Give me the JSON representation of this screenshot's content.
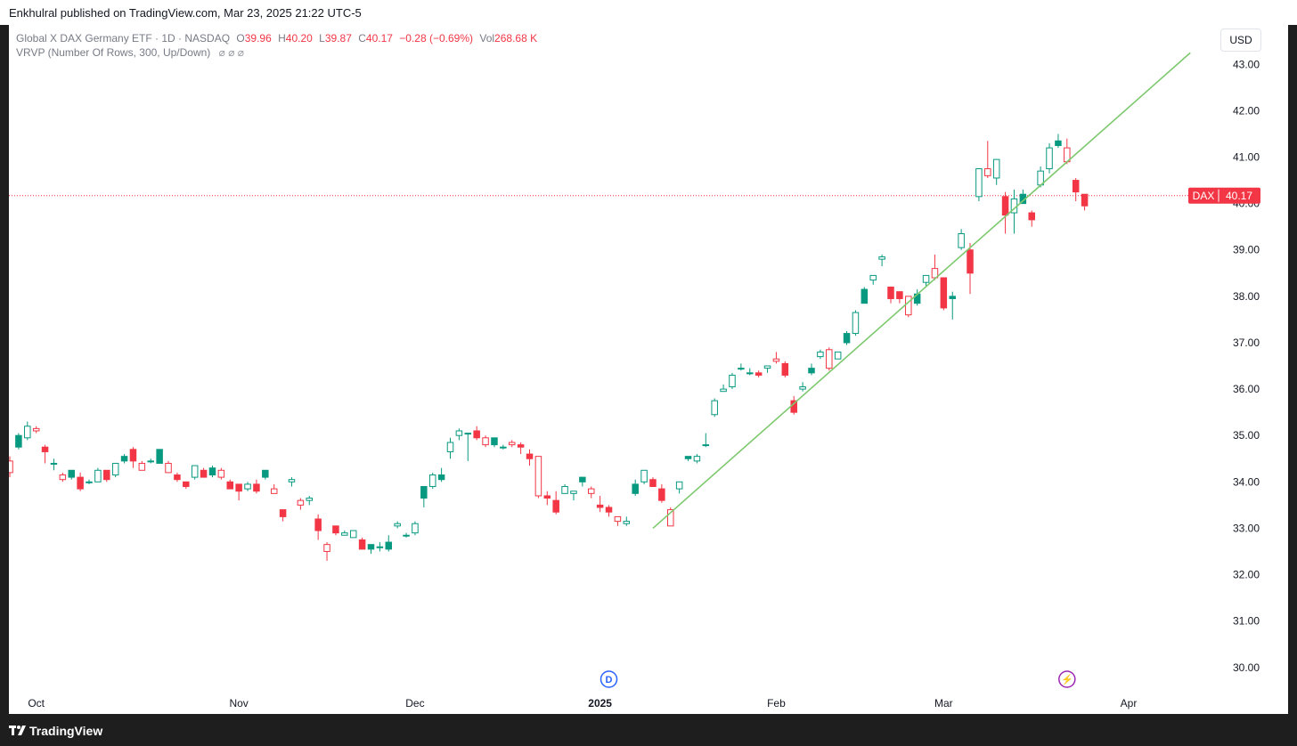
{
  "header": {
    "published": "Enkhulral published on TradingView.com, Mar 23, 2025 21:22 UTC-5"
  },
  "legend": {
    "title": "Global X DAX Germany ETF · 1D · NASDAQ",
    "o_key": "O",
    "o": "39.96",
    "h_key": "H",
    "h": "40.20",
    "l_key": "L",
    "l": "39.87",
    "c_key": "C",
    "c": "40.17",
    "change": "−0.28 (−0.69%)",
    "vol_key": "Vol",
    "vol": "268.68 K",
    "indicator": "VRVP (Number Of Rows, 300, Up/Down)",
    "indicator_icons": "⌀ ⌀ ⌀"
  },
  "currency_button": "USD",
  "footer": {
    "brand": "TradingView"
  },
  "colors": {
    "up": "#089981",
    "down": "#f23645",
    "trendline": "#7ec96f",
    "price_line": "#f23645"
  },
  "events": [
    {
      "label": "D",
      "date_index": 68,
      "color": "#2962ff"
    },
    {
      "label": "⚡",
      "date_index": 120,
      "color": "#9c27b0"
    }
  ],
  "chart_data": {
    "type": "candlestick",
    "symbol": "DAX",
    "last_price": "40.17",
    "last_label": "DAX",
    "ylim": [
      29.65,
      43.85
    ],
    "y_ticks": [
      "30.00",
      "31.00",
      "32.00",
      "33.00",
      "34.00",
      "35.00",
      "36.00",
      "37.00",
      "38.00",
      "39.00",
      "40.00",
      "41.00",
      "42.00",
      "43.00"
    ],
    "x_ticks": [
      {
        "label": "Oct",
        "index": 3
      },
      {
        "label": "Nov",
        "index": 26
      },
      {
        "label": "Dec",
        "index": 46
      },
      {
        "label": "2025",
        "index": 67
      },
      {
        "label": "Feb",
        "index": 87
      },
      {
        "label": "Mar",
        "index": 106
      },
      {
        "label": "Apr",
        "index": 127
      }
    ],
    "trendline": [
      {
        "index": 73,
        "price": 33.0
      },
      {
        "index": 134,
        "price": 43.25
      }
    ],
    "candles": [
      [
        34.45,
        34.2,
        34.55,
        34.1
      ],
      [
        34.75,
        35.0,
        35.05,
        34.7
      ],
      [
        34.95,
        35.2,
        35.3,
        34.9
      ],
      [
        35.15,
        35.1,
        35.2,
        35.05
      ],
      [
        34.75,
        34.65,
        34.8,
        34.4
      ],
      [
        34.4,
        34.4,
        34.5,
        34.25
      ],
      [
        34.15,
        34.05,
        34.2,
        34.0
      ],
      [
        34.1,
        34.25,
        34.25,
        34.05
      ],
      [
        34.1,
        33.85,
        34.2,
        33.8
      ],
      [
        34.0,
        34.0,
        34.05,
        33.95
      ],
      [
        34.0,
        34.25,
        34.3,
        34.0
      ],
      [
        34.25,
        34.05,
        34.25,
        34.0
      ],
      [
        34.15,
        34.4,
        34.4,
        34.1
      ],
      [
        34.45,
        34.55,
        34.6,
        34.4
      ],
      [
        34.7,
        34.45,
        34.75,
        34.3
      ],
      [
        34.4,
        34.25,
        34.45,
        34.25
      ],
      [
        34.45,
        34.45,
        34.5,
        34.4
      ],
      [
        34.4,
        34.7,
        34.7,
        34.4
      ],
      [
        34.4,
        34.2,
        34.45,
        34.2
      ],
      [
        34.15,
        34.05,
        34.2,
        34.0
      ],
      [
        34.0,
        33.9,
        34.0,
        33.85
      ],
      [
        34.1,
        34.35,
        34.35,
        34.05
      ],
      [
        34.25,
        34.1,
        34.3,
        34.1
      ],
      [
        34.15,
        34.3,
        34.35,
        34.1
      ],
      [
        34.25,
        34.1,
        34.3,
        34.05
      ],
      [
        34.0,
        33.85,
        34.05,
        33.85
      ],
      [
        33.95,
        33.8,
        33.95,
        33.6
      ],
      [
        33.85,
        33.95,
        34.0,
        33.8
      ],
      [
        33.95,
        33.8,
        34.05,
        33.75
      ],
      [
        34.1,
        34.25,
        34.25,
        34.05
      ],
      [
        33.85,
        33.75,
        33.95,
        33.75
      ],
      [
        33.4,
        33.25,
        33.4,
        33.15
      ],
      [
        34.0,
        34.05,
        34.1,
        33.9
      ],
      [
        33.6,
        33.5,
        33.65,
        33.4
      ],
      [
        33.6,
        33.65,
        33.7,
        33.5
      ],
      [
        33.2,
        32.95,
        33.3,
        32.75
      ],
      [
        32.65,
        32.5,
        32.7,
        32.3
      ],
      [
        33.05,
        32.9,
        33.05,
        32.85
      ],
      [
        32.85,
        32.9,
        32.95,
        32.85
      ],
      [
        32.8,
        32.95,
        32.95,
        32.85
      ],
      [
        32.75,
        32.55,
        32.8,
        32.55
      ],
      [
        32.55,
        32.65,
        32.65,
        32.45
      ],
      [
        32.6,
        32.6,
        32.7,
        32.5
      ],
      [
        32.55,
        32.7,
        32.85,
        32.5
      ],
      [
        33.05,
        33.1,
        33.15,
        33.0
      ],
      [
        32.85,
        32.85,
        32.9,
        32.8
      ],
      [
        32.9,
        33.1,
        33.15,
        32.85
      ],
      [
        33.65,
        33.9,
        33.9,
        33.45
      ],
      [
        33.9,
        34.15,
        34.2,
        33.85
      ],
      [
        34.05,
        34.15,
        34.3,
        34.0
      ],
      [
        34.65,
        34.85,
        34.95,
        34.5
      ],
      [
        35.0,
        35.1,
        35.15,
        34.9
      ],
      [
        35.05,
        35.05,
        35.05,
        34.45
      ],
      [
        35.1,
        34.95,
        35.2,
        34.9
      ],
      [
        34.95,
        34.8,
        35.0,
        34.75
      ],
      [
        34.8,
        34.95,
        34.95,
        34.75
      ],
      [
        34.75,
        34.75,
        34.8,
        34.7
      ],
      [
        34.85,
        34.8,
        34.9,
        34.75
      ],
      [
        34.8,
        34.75,
        34.85,
        34.6
      ],
      [
        34.6,
        34.5,
        34.7,
        34.35
      ],
      [
        34.55,
        33.7,
        34.55,
        33.65
      ],
      [
        33.7,
        33.65,
        33.8,
        33.5
      ],
      [
        33.6,
        33.35,
        33.8,
        33.3
      ],
      [
        33.75,
        33.9,
        33.95,
        33.75
      ],
      [
        33.75,
        33.8,
        33.8,
        33.6
      ],
      [
        34.0,
        34.1,
        34.1,
        33.9
      ],
      [
        33.85,
        33.75,
        33.9,
        33.65
      ],
      [
        33.5,
        33.45,
        33.7,
        33.35
      ],
      [
        33.45,
        33.35,
        33.5,
        33.25
      ],
      [
        33.25,
        33.15,
        33.25,
        33.05
      ],
      [
        33.1,
        33.15,
        33.25,
        33.05
      ],
      [
        33.75,
        33.95,
        34.05,
        33.7
      ],
      [
        34.0,
        34.25,
        34.25,
        33.95
      ],
      [
        34.05,
        33.9,
        34.1,
        33.9
      ],
      [
        33.85,
        33.6,
        33.95,
        33.55
      ],
      [
        33.4,
        33.05,
        33.45,
        33.05
      ],
      [
        33.85,
        34.0,
        34.0,
        33.75
      ],
      [
        34.5,
        34.55,
        34.55,
        34.45
      ],
      [
        34.45,
        34.55,
        34.6,
        34.4
      ],
      [
        34.8,
        34.8,
        35.05,
        34.75
      ],
      [
        35.45,
        35.75,
        35.8,
        35.4
      ],
      [
        35.95,
        36.0,
        36.1,
        35.95
      ],
      [
        36.05,
        36.3,
        36.35,
        36.0
      ],
      [
        36.45,
        36.45,
        36.55,
        36.4
      ],
      [
        36.35,
        36.35,
        36.45,
        36.3
      ],
      [
        36.35,
        36.3,
        36.4,
        36.25
      ],
      [
        36.45,
        36.5,
        36.5,
        36.35
      ],
      [
        36.65,
        36.6,
        36.8,
        36.55
      ],
      [
        36.55,
        36.3,
        36.6,
        36.25
      ],
      [
        35.75,
        35.5,
        35.85,
        35.45
      ],
      [
        36.0,
        36.05,
        36.15,
        35.95
      ],
      [
        36.35,
        36.45,
        36.55,
        36.3
      ],
      [
        36.7,
        36.8,
        36.85,
        36.65
      ],
      [
        36.85,
        36.45,
        36.9,
        36.4
      ],
      [
        36.65,
        36.8,
        36.8,
        36.65
      ],
      [
        37.0,
        37.2,
        37.25,
        36.95
      ],
      [
        37.2,
        37.65,
        37.7,
        37.15
      ],
      [
        37.85,
        38.15,
        38.2,
        37.85
      ],
      [
        38.35,
        38.45,
        38.45,
        38.25
      ],
      [
        38.8,
        38.85,
        38.9,
        38.65
      ],
      [
        38.2,
        37.95,
        38.2,
        37.85
      ],
      [
        38.1,
        37.95,
        38.1,
        37.85
      ],
      [
        38.0,
        37.6,
        38.0,
        37.55
      ],
      [
        37.85,
        38.05,
        38.15,
        37.8
      ],
      [
        38.3,
        38.45,
        38.45,
        38.2
      ],
      [
        38.6,
        38.4,
        38.9,
        38.35
      ],
      [
        38.4,
        37.75,
        38.4,
        37.7
      ],
      [
        37.95,
        38.0,
        38.1,
        37.5
      ],
      [
        39.05,
        39.35,
        39.45,
        39.0
      ],
      [
        39.0,
        38.5,
        39.15,
        38.05
      ],
      [
        40.15,
        40.75,
        40.75,
        40.05
      ],
      [
        40.75,
        40.6,
        41.35,
        40.55
      ],
      [
        40.55,
        40.95,
        40.95,
        40.4
      ],
      [
        40.15,
        39.75,
        40.25,
        39.35
      ],
      [
        39.8,
        40.1,
        40.3,
        39.35
      ],
      [
        40.0,
        40.2,
        40.3,
        40.1
      ],
      [
        39.8,
        39.65,
        39.85,
        39.5
      ],
      [
        40.4,
        40.7,
        40.8,
        40.35
      ],
      [
        40.75,
        41.2,
        41.3,
        40.65
      ],
      [
        41.25,
        41.35,
        41.5,
        41.2
      ],
      [
        41.2,
        40.9,
        41.4,
        40.85
      ],
      [
        40.5,
        40.25,
        40.55,
        40.05
      ],
      [
        40.2,
        39.95,
        40.2,
        39.85
      ]
    ]
  }
}
